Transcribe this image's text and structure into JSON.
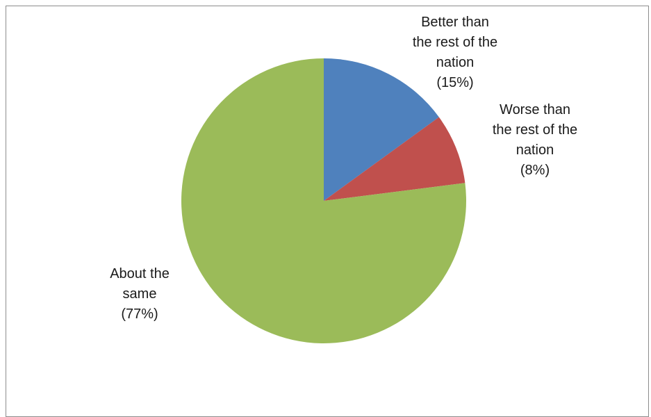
{
  "chart_data": {
    "type": "pie",
    "title": "",
    "slices": [
      {
        "label_lines": [
          "Better than",
          "the rest of the",
          "nation"
        ],
        "value_text": "(15%)",
        "value": 15,
        "color": "#4f81bd"
      },
      {
        "label_lines": [
          "Worse than",
          "the rest of the",
          "nation"
        ],
        "value_text": "(8%)",
        "value": 8,
        "color": "#c0504d"
      },
      {
        "label_lines": [
          "About the",
          "same"
        ],
        "value_text": "(77%)",
        "value": 77,
        "color": "#9bbb59"
      }
    ],
    "start_angle": "12 o'clock",
    "direction": "clockwise",
    "legend": "none"
  }
}
